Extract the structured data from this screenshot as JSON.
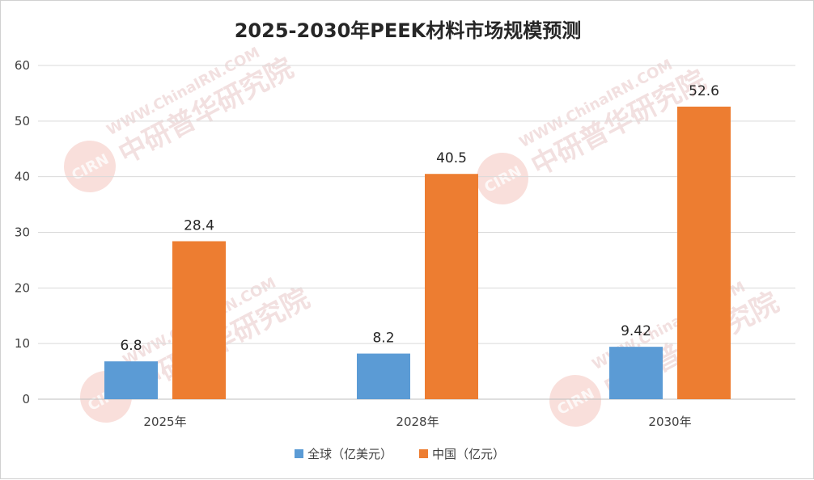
{
  "chart_data": {
    "type": "bar",
    "title": "2025-2030年PEEK材料市场规模预测",
    "categories": [
      "2025年",
      "2028年",
      "2030年"
    ],
    "series": [
      {
        "name": "全球（亿美元）",
        "values": [
          6.8,
          8.2,
          9.42
        ],
        "value_labels": [
          "6.8",
          "8.2",
          "9.42"
        ],
        "color": "#5b9bd5"
      },
      {
        "name": "中国（亿元）",
        "values": [
          28.4,
          40.5,
          52.6
        ],
        "value_labels": [
          "28.4",
          "40.5",
          "52.6"
        ],
        "color": "#ed7d31"
      }
    ],
    "ylim": [
      0,
      60
    ],
    "yticks": [
      0,
      10,
      20,
      30,
      40,
      50,
      60
    ],
    "grid": true,
    "legend_position": "bottom",
    "xlabel": "",
    "ylabel": ""
  },
  "watermark": {
    "url": "WWW.ChinaIRN.COM",
    "name": "中研普华研究院",
    "logo": "CIRN",
    "color": "#e8c8c8"
  }
}
